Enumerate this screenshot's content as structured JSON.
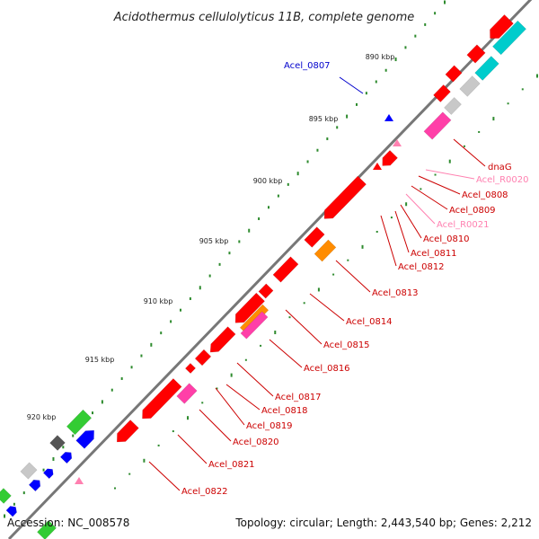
{
  "title": "Acidothermus cellulolyticus 11B, complete genome",
  "footer": {
    "accession": "Accession: NC_008578",
    "topology": "Topology: circular; Length: 2,443,540 bp; Genes: 2,212"
  },
  "colors": {
    "cds": "#ff0000",
    "rna": "#ff3fa8",
    "misc": "#ff8c00",
    "other": "#c8c8c8",
    "cyan": "#00cccc",
    "blue": "#0000ff",
    "green": "#33cc33",
    "grey_dark": "#555555",
    "backbone": "#777777",
    "tick": "#2e8b2e",
    "label_cds": "#cc0000",
    "label_rna": "#ff80b0",
    "label_query": "#0000cc"
  },
  "scale_labels": [
    "890 kbp",
    "895 kbp",
    "900 kbp",
    "905 kbp",
    "910 kbp",
    "915 kbp",
    "920 kbp"
  ],
  "gene_labels": [
    {
      "text": "Acel_0807",
      "kind": "query"
    },
    {
      "text": "dnaG",
      "kind": "cds"
    },
    {
      "text": "Acel_R0020",
      "kind": "rna"
    },
    {
      "text": "Acel_0808",
      "kind": "cds"
    },
    {
      "text": "Acel_0809",
      "kind": "cds"
    },
    {
      "text": "Acel_R0021",
      "kind": "rna"
    },
    {
      "text": "Acel_0810",
      "kind": "cds"
    },
    {
      "text": "Acel_0811",
      "kind": "cds"
    },
    {
      "text": "Acel_0812",
      "kind": "cds"
    },
    {
      "text": "Acel_0813",
      "kind": "cds"
    },
    {
      "text": "Acel_0814",
      "kind": "cds"
    },
    {
      "text": "Acel_0815",
      "kind": "cds"
    },
    {
      "text": "Acel_0816",
      "kind": "cds"
    },
    {
      "text": "Acel_0817",
      "kind": "cds"
    },
    {
      "text": "Acel_0818",
      "kind": "cds"
    },
    {
      "text": "Acel_0819",
      "kind": "cds"
    },
    {
      "text": "Acel_0820",
      "kind": "cds"
    },
    {
      "text": "Acel_0821",
      "kind": "cds"
    },
    {
      "text": "Acel_0822",
      "kind": "cds"
    }
  ]
}
